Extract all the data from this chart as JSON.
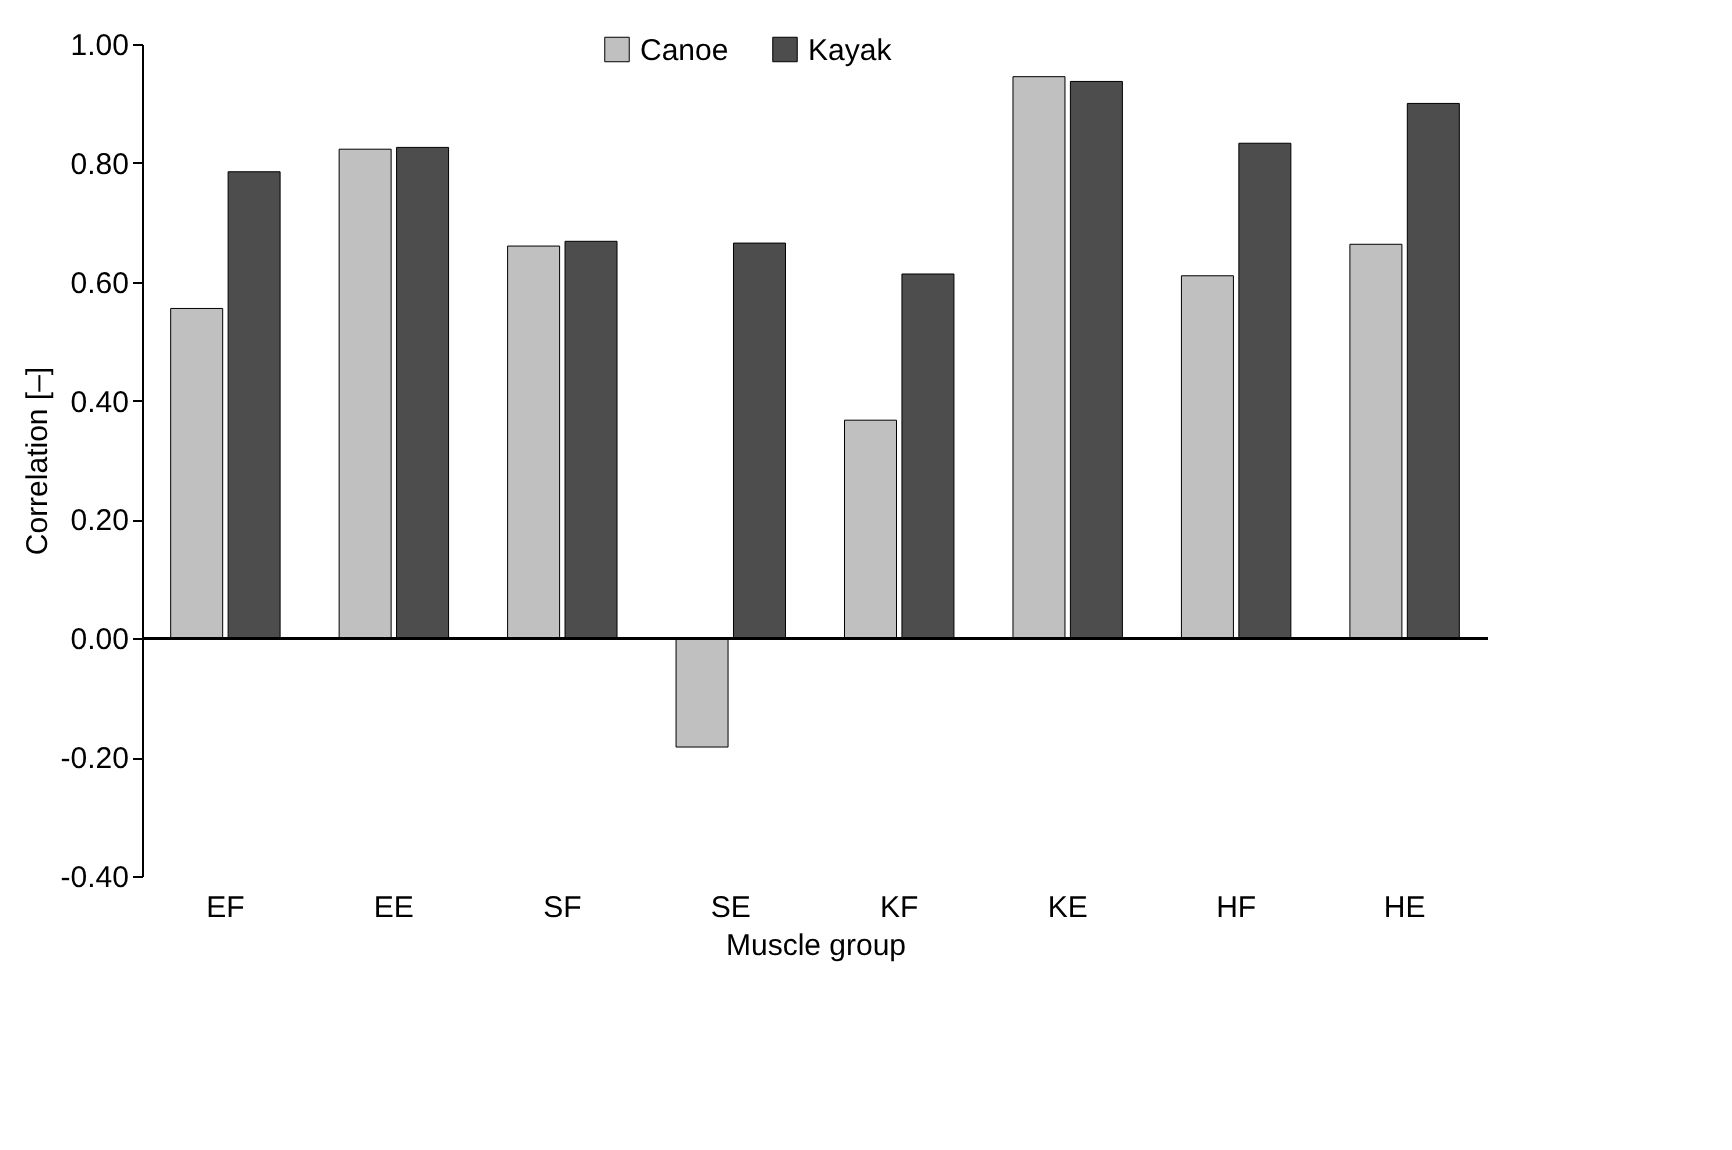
{
  "chart_data": {
    "type": "bar",
    "xlabel": "Muscle group",
    "ylabel": "Correlation [–]",
    "categories": [
      "EF",
      "EE",
      "SF",
      "SE",
      "KF",
      "KE",
      "HF",
      "HE"
    ],
    "series": [
      {
        "name": "Canoe",
        "color": "#c0c0c0",
        "values": [
          0.555,
          0.823,
          0.66,
          -0.183,
          0.367,
          0.945,
          0.61,
          0.663
        ]
      },
      {
        "name": "Kayak",
        "color": "#4d4d4d",
        "values": [
          0.785,
          0.826,
          0.668,
          0.665,
          0.613,
          0.937,
          0.833,
          0.9
        ]
      }
    ],
    "ylim": [
      -0.4,
      1.0
    ],
    "yticks": [
      {
        "value": -0.4,
        "label": "-0.40"
      },
      {
        "value": -0.2,
        "label": "-0.20"
      },
      {
        "value": 0,
        "label": "0.00"
      },
      {
        "value": 0.2,
        "label": "0.20"
      },
      {
        "value": 0.4,
        "label": "0.40"
      },
      {
        "value": 0.6,
        "label": "0.60"
      },
      {
        "value": 0.8,
        "label": "0.80"
      },
      {
        "value": 1.0,
        "label": "1.00"
      }
    ],
    "ref_lines": [
      {
        "axis": "y",
        "value": 0,
        "color": "#000000"
      }
    ],
    "legend": "top",
    "grid": false
  }
}
